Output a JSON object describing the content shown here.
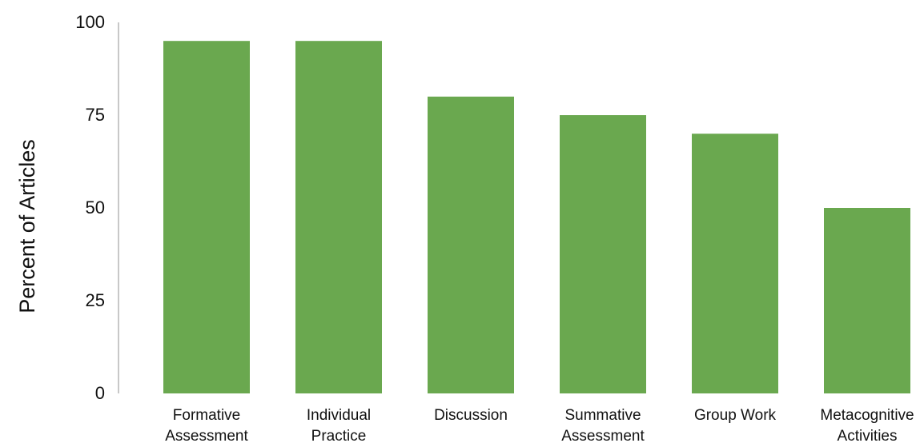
{
  "chart_data": {
    "type": "bar",
    "title": "",
    "xlabel": "",
    "ylabel": "Percent of Articles",
    "ylim": [
      0,
      100
    ],
    "yticks": [
      0,
      25,
      50,
      75,
      100
    ],
    "grid": false,
    "categories": [
      [
        "Formative",
        "Assessment"
      ],
      [
        "Individual",
        "Practice"
      ],
      [
        "Discussion"
      ],
      [
        "Summative",
        "Assessment"
      ],
      [
        "Group Work"
      ],
      [
        "Metacognitive",
        "Activities"
      ]
    ],
    "values": [
      95,
      95,
      80,
      75,
      70,
      50
    ],
    "bar_color": "#6aa84f",
    "axis_color": "#b5b5b5"
  }
}
